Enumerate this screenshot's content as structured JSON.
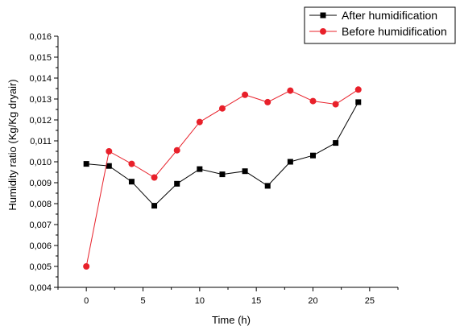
{
  "chart_data": {
    "type": "line",
    "title": "",
    "xlabel": "Time (h)",
    "ylabel": "Humidity ratio (Kg/Kg dryair)",
    "xlim": [
      -2.5,
      27.5
    ],
    "ylim": [
      0.004,
      0.016
    ],
    "x_ticks": [
      "0",
      "5",
      "10",
      "15",
      "20",
      "25"
    ],
    "y_ticks": [
      "0,004",
      "0,005",
      "0,006",
      "0,007",
      "0,008",
      "0,009",
      "0,010",
      "0,011",
      "0,012",
      "0,013",
      "0,014",
      "0,015",
      "0,016"
    ],
    "legend_position": "top-right",
    "grid": false,
    "x": [
      0,
      2,
      4,
      6,
      8,
      10,
      12,
      14,
      16,
      18,
      20,
      22,
      24
    ],
    "series": [
      {
        "name": "After humidification",
        "color": "#000000",
        "marker": "square",
        "values": [
          0.0099,
          0.0098,
          0.00905,
          0.0079,
          0.00895,
          0.00965,
          0.0094,
          0.00955,
          0.00885,
          0.01,
          0.0103,
          0.0109,
          0.01285
        ]
      },
      {
        "name": "Before humidification",
        "color": "#e8202a",
        "marker": "circle",
        "values": [
          0.005,
          0.0105,
          0.0099,
          0.00925,
          0.01055,
          0.0119,
          0.01255,
          0.0132,
          0.01285,
          0.0134,
          0.0129,
          0.01275,
          0.01345
        ]
      }
    ]
  }
}
